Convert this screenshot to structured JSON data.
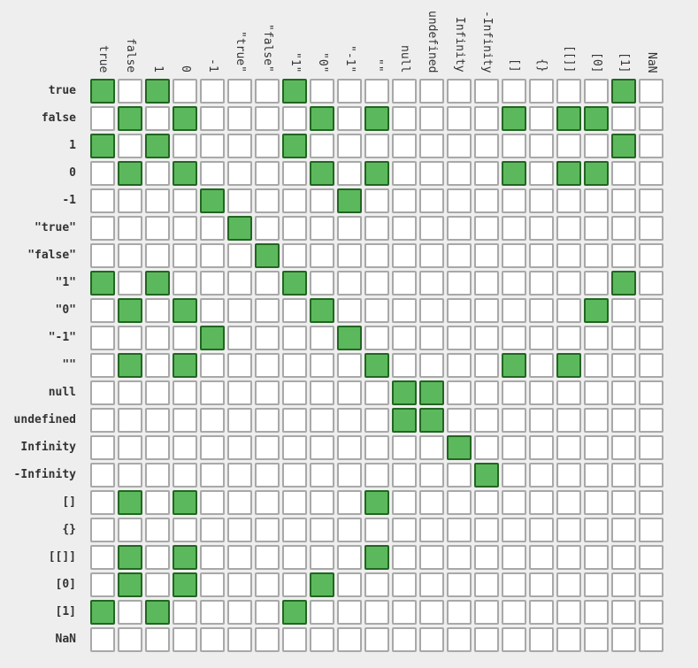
{
  "chart_data": {
    "type": "heatmap",
    "title": "",
    "xlabel": "",
    "ylabel": "",
    "colors": {
      "true_fill": "#5cb85c",
      "true_border": "#226622",
      "false_fill": "#ffffff",
      "false_border": "#a8a8a8",
      "background": "#eeeeee"
    },
    "columns": [
      "true",
      "false",
      "1",
      "0",
      "-1",
      "\"true\"",
      "\"false\"",
      "\"1\"",
      "\"0\"",
      "\"-1\"",
      "\"\"",
      "null",
      "undefined",
      "Infinity",
      "-Infinity",
      "[]",
      "{}",
      "[[]]",
      "[0]",
      "[1]",
      "NaN"
    ],
    "rows": [
      "true",
      "false",
      "1",
      "0",
      "-1",
      "\"true\"",
      "\"false\"",
      "\"1\"",
      "\"0\"",
      "\"-1\"",
      "\"\"",
      "null",
      "undefined",
      "Infinity",
      "-Infinity",
      "[]",
      "{}",
      "[[]]",
      "[0]",
      "[1]",
      "NaN"
    ],
    "matrix": [
      [
        1,
        0,
        1,
        0,
        0,
        0,
        0,
        1,
        0,
        0,
        0,
        0,
        0,
        0,
        0,
        0,
        0,
        0,
        0,
        1,
        0
      ],
      [
        0,
        1,
        0,
        1,
        0,
        0,
        0,
        0,
        1,
        0,
        1,
        0,
        0,
        0,
        0,
        1,
        0,
        1,
        1,
        0,
        0
      ],
      [
        1,
        0,
        1,
        0,
        0,
        0,
        0,
        1,
        0,
        0,
        0,
        0,
        0,
        0,
        0,
        0,
        0,
        0,
        0,
        1,
        0
      ],
      [
        0,
        1,
        0,
        1,
        0,
        0,
        0,
        0,
        1,
        0,
        1,
        0,
        0,
        0,
        0,
        1,
        0,
        1,
        1,
        0,
        0
      ],
      [
        0,
        0,
        0,
        0,
        1,
        0,
        0,
        0,
        0,
        1,
        0,
        0,
        0,
        0,
        0,
        0,
        0,
        0,
        0,
        0,
        0
      ],
      [
        0,
        0,
        0,
        0,
        0,
        1,
        0,
        0,
        0,
        0,
        0,
        0,
        0,
        0,
        0,
        0,
        0,
        0,
        0,
        0,
        0
      ],
      [
        0,
        0,
        0,
        0,
        0,
        0,
        1,
        0,
        0,
        0,
        0,
        0,
        0,
        0,
        0,
        0,
        0,
        0,
        0,
        0,
        0
      ],
      [
        1,
        0,
        1,
        0,
        0,
        0,
        0,
        1,
        0,
        0,
        0,
        0,
        0,
        0,
        0,
        0,
        0,
        0,
        0,
        1,
        0
      ],
      [
        0,
        1,
        0,
        1,
        0,
        0,
        0,
        0,
        1,
        0,
        0,
        0,
        0,
        0,
        0,
        0,
        0,
        0,
        1,
        0,
        0
      ],
      [
        0,
        0,
        0,
        0,
        1,
        0,
        0,
        0,
        0,
        1,
        0,
        0,
        0,
        0,
        0,
        0,
        0,
        0,
        0,
        0,
        0
      ],
      [
        0,
        1,
        0,
        1,
        0,
        0,
        0,
        0,
        0,
        0,
        1,
        0,
        0,
        0,
        0,
        1,
        0,
        1,
        0,
        0,
        0
      ],
      [
        0,
        0,
        0,
        0,
        0,
        0,
        0,
        0,
        0,
        0,
        0,
        1,
        1,
        0,
        0,
        0,
        0,
        0,
        0,
        0,
        0
      ],
      [
        0,
        0,
        0,
        0,
        0,
        0,
        0,
        0,
        0,
        0,
        0,
        1,
        1,
        0,
        0,
        0,
        0,
        0,
        0,
        0,
        0
      ],
      [
        0,
        0,
        0,
        0,
        0,
        0,
        0,
        0,
        0,
        0,
        0,
        0,
        0,
        1,
        0,
        0,
        0,
        0,
        0,
        0,
        0
      ],
      [
        0,
        0,
        0,
        0,
        0,
        0,
        0,
        0,
        0,
        0,
        0,
        0,
        0,
        0,
        1,
        0,
        0,
        0,
        0,
        0,
        0
      ],
      [
        0,
        1,
        0,
        1,
        0,
        0,
        0,
        0,
        0,
        0,
        1,
        0,
        0,
        0,
        0,
        0,
        0,
        0,
        0,
        0,
        0
      ],
      [
        0,
        0,
        0,
        0,
        0,
        0,
        0,
        0,
        0,
        0,
        0,
        0,
        0,
        0,
        0,
        0,
        0,
        0,
        0,
        0,
        0
      ],
      [
        0,
        1,
        0,
        1,
        0,
        0,
        0,
        0,
        0,
        0,
        1,
        0,
        0,
        0,
        0,
        0,
        0,
        0,
        0,
        0,
        0
      ],
      [
        0,
        1,
        0,
        1,
        0,
        0,
        0,
        0,
        1,
        0,
        0,
        0,
        0,
        0,
        0,
        0,
        0,
        0,
        0,
        0,
        0
      ],
      [
        1,
        0,
        1,
        0,
        0,
        0,
        0,
        1,
        0,
        0,
        0,
        0,
        0,
        0,
        0,
        0,
        0,
        0,
        0,
        0,
        0
      ],
      [
        0,
        0,
        0,
        0,
        0,
        0,
        0,
        0,
        0,
        0,
        0,
        0,
        0,
        0,
        0,
        0,
        0,
        0,
        0,
        0,
        0
      ]
    ]
  }
}
